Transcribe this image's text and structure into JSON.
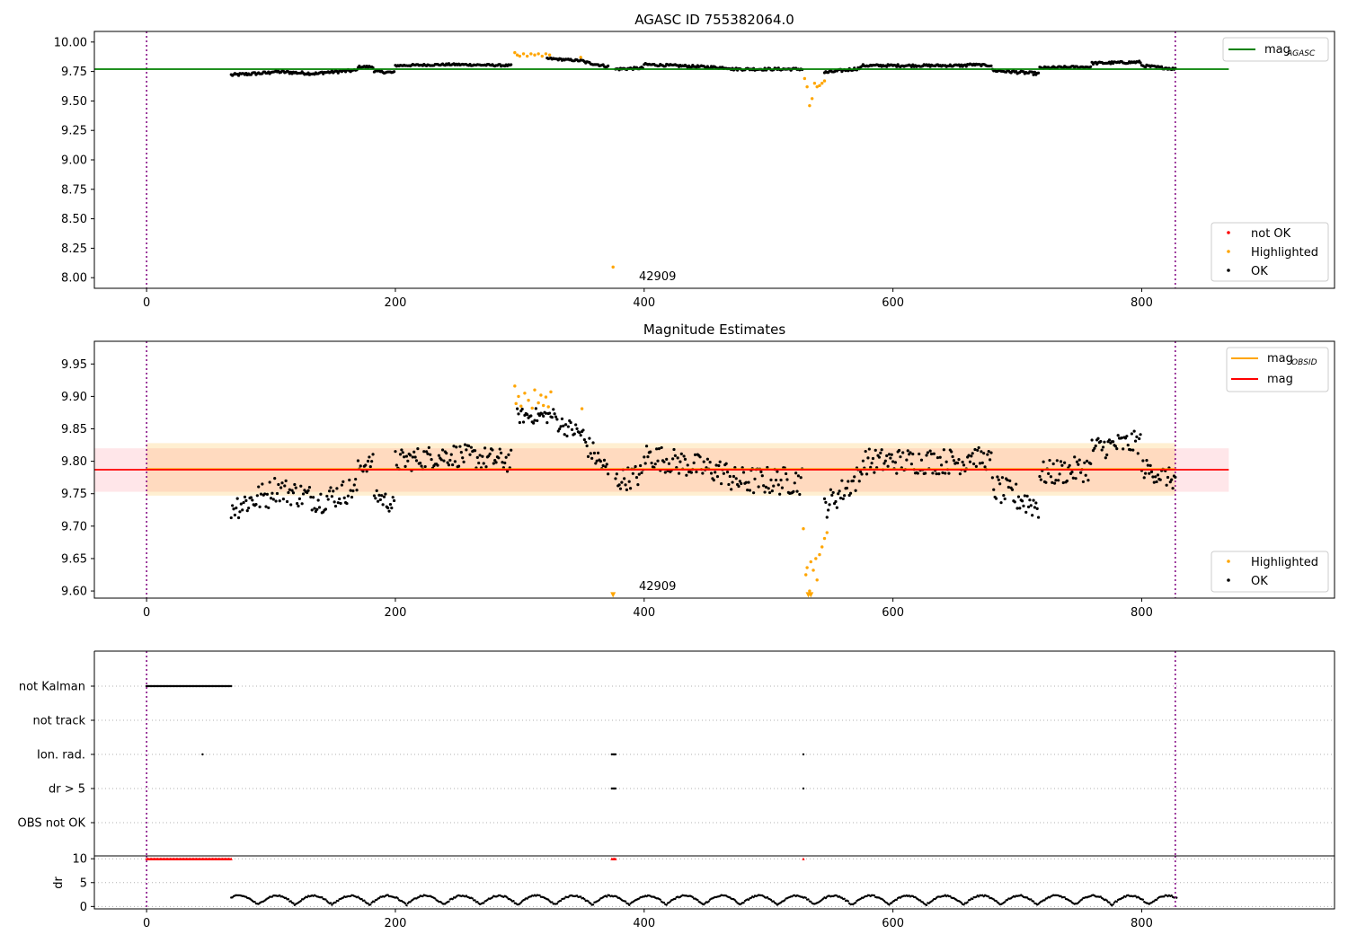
{
  "chart_data": [
    {
      "type": "scatter",
      "title": "AGASC ID 755382064.0",
      "xlim": [
        -42,
        955
      ],
      "ylim": [
        7.91,
        10.09
      ],
      "xticks": [
        "0",
        "200",
        "400",
        "600",
        "800"
      ],
      "xtick_values": [
        0,
        200,
        400,
        600,
        800
      ],
      "yticks": [
        "8.00",
        "8.25",
        "8.50",
        "8.75",
        "9.00",
        "9.25",
        "9.50",
        "9.75",
        "10.00"
      ],
      "ytick_values": [
        8.0,
        8.25,
        8.5,
        8.75,
        9.0,
        9.25,
        9.5,
        9.75,
        10.0
      ],
      "annotation": {
        "text": "42909",
        "x": 400,
        "y": 8.02
      },
      "vlines": [
        0,
        827
      ],
      "mag_agasc": 9.77,
      "mag_agasc_xrange": [
        -42,
        870
      ],
      "legend_lines": {
        "label_main": "mag",
        "label_sub": "AGASC",
        "color": "#008000",
        "placement": "upper right"
      },
      "legend_points": [
        {
          "label": "not OK",
          "color": "#ff0000"
        },
        {
          "label": "Highlighted",
          "color": "#ffa500"
        },
        {
          "label": "OK",
          "color": "#000000"
        }
      ],
      "legend_points_placement": "lower right",
      "ok_segments": [
        {
          "x": [
            68,
            100
          ],
          "y": [
            9.72,
            9.74
          ],
          "wobble": 0.012
        },
        {
          "x": [
            100,
            140
          ],
          "y": [
            9.75,
            9.73
          ],
          "wobble": 0.012
        },
        {
          "x": [
            140,
            170
          ],
          "y": [
            9.74,
            9.76
          ],
          "wobble": 0.012
        },
        {
          "x": [
            170,
            183
          ],
          "y": [
            9.79,
            9.79
          ],
          "wobble": 0.008
        },
        {
          "x": [
            183,
            200
          ],
          "y": [
            9.75,
            9.74
          ],
          "wobble": 0.01
        },
        {
          "x": [
            200,
            245
          ],
          "y": [
            9.8,
            9.81
          ],
          "wobble": 0.008
        },
        {
          "x": [
            245,
            294
          ],
          "y": [
            9.81,
            9.8
          ],
          "wobble": 0.008
        },
        {
          "x": [
            322,
            352
          ],
          "y": [
            9.86,
            9.84
          ],
          "wobble": 0.008
        },
        {
          "x": [
            352,
            372
          ],
          "y": [
            9.83,
            9.79
          ],
          "wobble": 0.01
        },
        {
          "x": [
            377,
            400
          ],
          "y": [
            9.77,
            9.78
          ],
          "wobble": 0.01
        },
        {
          "x": [
            400,
            470
          ],
          "y": [
            9.81,
            9.78
          ],
          "wobble": 0.01
        },
        {
          "x": [
            470,
            528
          ],
          "y": [
            9.77,
            9.77
          ],
          "wobble": 0.01
        },
        {
          "x": [
            545,
            575
          ],
          "y": [
            9.74,
            9.78
          ],
          "wobble": 0.012
        },
        {
          "x": [
            575,
            660
          ],
          "y": [
            9.8,
            9.8
          ],
          "wobble": 0.01
        },
        {
          "x": [
            660,
            680
          ],
          "y": [
            9.81,
            9.8
          ],
          "wobble": 0.008
        },
        {
          "x": [
            680,
            718
          ],
          "y": [
            9.76,
            9.73
          ],
          "wobble": 0.012
        },
        {
          "x": [
            718,
            760
          ],
          "y": [
            9.78,
            9.79
          ],
          "wobble": 0.01
        },
        {
          "x": [
            760,
            800
          ],
          "y": [
            9.82,
            9.83
          ],
          "wobble": 0.01
        },
        {
          "x": [
            800,
            828
          ],
          "y": [
            9.8,
            9.77
          ],
          "wobble": 0.01
        }
      ],
      "highlighted_points": [
        {
          "x": 296,
          "y": 9.91
        },
        {
          "x": 298,
          "y": 9.89
        },
        {
          "x": 300,
          "y": 9.88
        },
        {
          "x": 303,
          "y": 9.9
        },
        {
          "x": 306,
          "y": 9.88
        },
        {
          "x": 309,
          "y": 9.9
        },
        {
          "x": 312,
          "y": 9.89
        },
        {
          "x": 315,
          "y": 9.9
        },
        {
          "x": 318,
          "y": 9.88
        },
        {
          "x": 321,
          "y": 9.9
        },
        {
          "x": 324,
          "y": 9.89
        },
        {
          "x": 349,
          "y": 9.87
        },
        {
          "x": 375,
          "y": 8.09
        },
        {
          "x": 529,
          "y": 9.69
        },
        {
          "x": 531,
          "y": 9.62
        },
        {
          "x": 533,
          "y": 9.46
        },
        {
          "x": 535,
          "y": 9.52
        },
        {
          "x": 537,
          "y": 9.65
        },
        {
          "x": 539,
          "y": 9.62
        },
        {
          "x": 541,
          "y": 9.63
        },
        {
          "x": 543,
          "y": 9.65
        },
        {
          "x": 545,
          "y": 9.67
        }
      ]
    },
    {
      "type": "scatter",
      "title": "Magnitude Estimates",
      "xlim": [
        -42,
        955
      ],
      "ylim": [
        9.589,
        9.985
      ],
      "xticks": [
        "0",
        "200",
        "400",
        "600",
        "800"
      ],
      "xtick_values": [
        0,
        200,
        400,
        600,
        800
      ],
      "yticks": [
        "9.60",
        "9.65",
        "9.70",
        "9.75",
        "9.80",
        "9.85",
        "9.90",
        "9.95"
      ],
      "ytick_values": [
        9.6,
        9.65,
        9.7,
        9.75,
        9.8,
        9.85,
        9.9,
        9.95
      ],
      "annotation": {
        "text": "42909",
        "x": 400,
        "y": 9.604
      },
      "vlines": [
        0,
        827
      ],
      "mag": 9.787,
      "mag_band": [
        9.753,
        9.82
      ],
      "mag_obsid": 9.788,
      "mag_obsid_band": [
        9.747,
        9.828
      ],
      "legend_lines": [
        {
          "label_main": "mag",
          "label_sub": "OBSID",
          "color": "#ffa500"
        },
        {
          "label_main": "mag",
          "label_sub": "",
          "color": "#ff0000"
        }
      ],
      "legend_lines_placement": "upper right",
      "legend_points": [
        {
          "label": "Highlighted",
          "color": "#ffa500"
        },
        {
          "label": "OK",
          "color": "#000000"
        }
      ],
      "legend_points_placement": "lower right",
      "ok_segments": [
        {
          "x": [
            68,
            100
          ],
          "y": [
            9.73,
            9.75
          ],
          "wobble": 0.022
        },
        {
          "x": [
            100,
            140
          ],
          "y": [
            9.76,
            9.74
          ],
          "wobble": 0.02
        },
        {
          "x": [
            140,
            170
          ],
          "y": [
            9.74,
            9.76
          ],
          "wobble": 0.02
        },
        {
          "x": [
            170,
            183
          ],
          "y": [
            9.79,
            9.8
          ],
          "wobble": 0.012
        },
        {
          "x": [
            183,
            200
          ],
          "y": [
            9.75,
            9.73
          ],
          "wobble": 0.014
        },
        {
          "x": [
            200,
            245
          ],
          "y": [
            9.8,
            9.81
          ],
          "wobble": 0.018
        },
        {
          "x": [
            245,
            294
          ],
          "y": [
            9.81,
            9.8
          ],
          "wobble": 0.018
        },
        {
          "x": [
            298,
            330
          ],
          "y": [
            9.87,
            9.87
          ],
          "wobble": 0.012
        },
        {
          "x": [
            330,
            352
          ],
          "y": [
            9.86,
            9.84
          ],
          "wobble": 0.014
        },
        {
          "x": [
            352,
            372
          ],
          "y": [
            9.83,
            9.78
          ],
          "wobble": 0.018
        },
        {
          "x": [
            377,
            400
          ],
          "y": [
            9.77,
            9.78
          ],
          "wobble": 0.018
        },
        {
          "x": [
            400,
            470
          ],
          "y": [
            9.81,
            9.78
          ],
          "wobble": 0.02
        },
        {
          "x": [
            470,
            528
          ],
          "y": [
            9.77,
            9.77
          ],
          "wobble": 0.022
        },
        {
          "x": [
            545,
            575
          ],
          "y": [
            9.73,
            9.78
          ],
          "wobble": 0.02
        },
        {
          "x": [
            575,
            660
          ],
          "y": [
            9.8,
            9.8
          ],
          "wobble": 0.02
        },
        {
          "x": [
            660,
            680
          ],
          "y": [
            9.81,
            9.8
          ],
          "wobble": 0.016
        },
        {
          "x": [
            680,
            718
          ],
          "y": [
            9.76,
            9.73
          ],
          "wobble": 0.022
        },
        {
          "x": [
            718,
            760
          ],
          "y": [
            9.78,
            9.79
          ],
          "wobble": 0.02
        },
        {
          "x": [
            760,
            800
          ],
          "y": [
            9.82,
            9.83
          ],
          "wobble": 0.018
        },
        {
          "x": [
            800,
            828
          ],
          "y": [
            9.79,
            9.77
          ],
          "wobble": 0.016
        }
      ],
      "highlighted_points": [
        {
          "x": 296,
          "y": 9.916
        },
        {
          "x": 297,
          "y": 9.889
        },
        {
          "x": 299,
          "y": 9.9
        },
        {
          "x": 301,
          "y": 9.885
        },
        {
          "x": 304,
          "y": 9.905
        },
        {
          "x": 307,
          "y": 9.894
        },
        {
          "x": 310,
          "y": 9.882
        },
        {
          "x": 312,
          "y": 9.91
        },
        {
          "x": 315,
          "y": 9.89
        },
        {
          "x": 317,
          "y": 9.902
        },
        {
          "x": 319,
          "y": 9.886
        },
        {
          "x": 321,
          "y": 9.899
        },
        {
          "x": 323,
          "y": 9.884
        },
        {
          "x": 325,
          "y": 9.907
        },
        {
          "x": 350,
          "y": 9.881
        },
        {
          "x": 528,
          "y": 9.696
        },
        {
          "x": 530,
          "y": 9.625
        },
        {
          "x": 531,
          "y": 9.636
        },
        {
          "x": 533,
          "y": 9.6
        },
        {
          "x": 534,
          "y": 9.645
        },
        {
          "x": 536,
          "y": 9.632
        },
        {
          "x": 538,
          "y": 9.65
        },
        {
          "x": 539,
          "y": 9.617
        },
        {
          "x": 541,
          "y": 9.656
        },
        {
          "x": 543,
          "y": 9.668
        },
        {
          "x": 545,
          "y": 9.681
        },
        {
          "x": 547,
          "y": 9.69
        }
      ],
      "lower_limit_markers": [
        {
          "x": 375,
          "y": 9.594
        },
        {
          "x": 532,
          "y": 9.594
        },
        {
          "x": 534,
          "y": 9.594
        }
      ]
    },
    {
      "type": "scatter",
      "title": "",
      "xlim": [
        -42,
        955
      ],
      "categories": [
        "not Kalman",
        "not track",
        "Ion. rad.",
        "dr > 5",
        "OBS not OK"
      ],
      "vlines": [
        0,
        827
      ],
      "flag_points": {
        "not Kalman": {
          "from": 0,
          "to": 68
        },
        "not track": {
          "from": null,
          "to": null
        },
        "Ion. rad.": {
          "x": [
            45,
            374,
            375,
            376,
            377,
            528
          ]
        },
        "dr > 5": {
          "x": [
            374,
            375,
            376,
            377,
            528
          ]
        },
        "OBS not OK": {
          "x": []
        }
      }
    },
    {
      "type": "line",
      "title": "",
      "xlim": [
        -42,
        955
      ],
      "ylim": [
        -0.5,
        10.6
      ],
      "ylabel": "dr",
      "xticks": [
        "0",
        "200",
        "400",
        "600",
        "800"
      ],
      "xtick_values": [
        0,
        200,
        400,
        600,
        800
      ],
      "yticks": [
        "0",
        "5",
        "10"
      ],
      "ytick_values": [
        0,
        5,
        10
      ],
      "vlines": [
        0,
        827
      ],
      "capped_points": {
        "ranges": [
          [
            0,
            68
          ]
        ],
        "singles": [
          374,
          375,
          376,
          377,
          528
        ],
        "value": 10
      },
      "dr_range": {
        "x": [
          68,
          828
        ],
        "y_min": 0.2,
        "y_max": 2.6
      }
    }
  ]
}
